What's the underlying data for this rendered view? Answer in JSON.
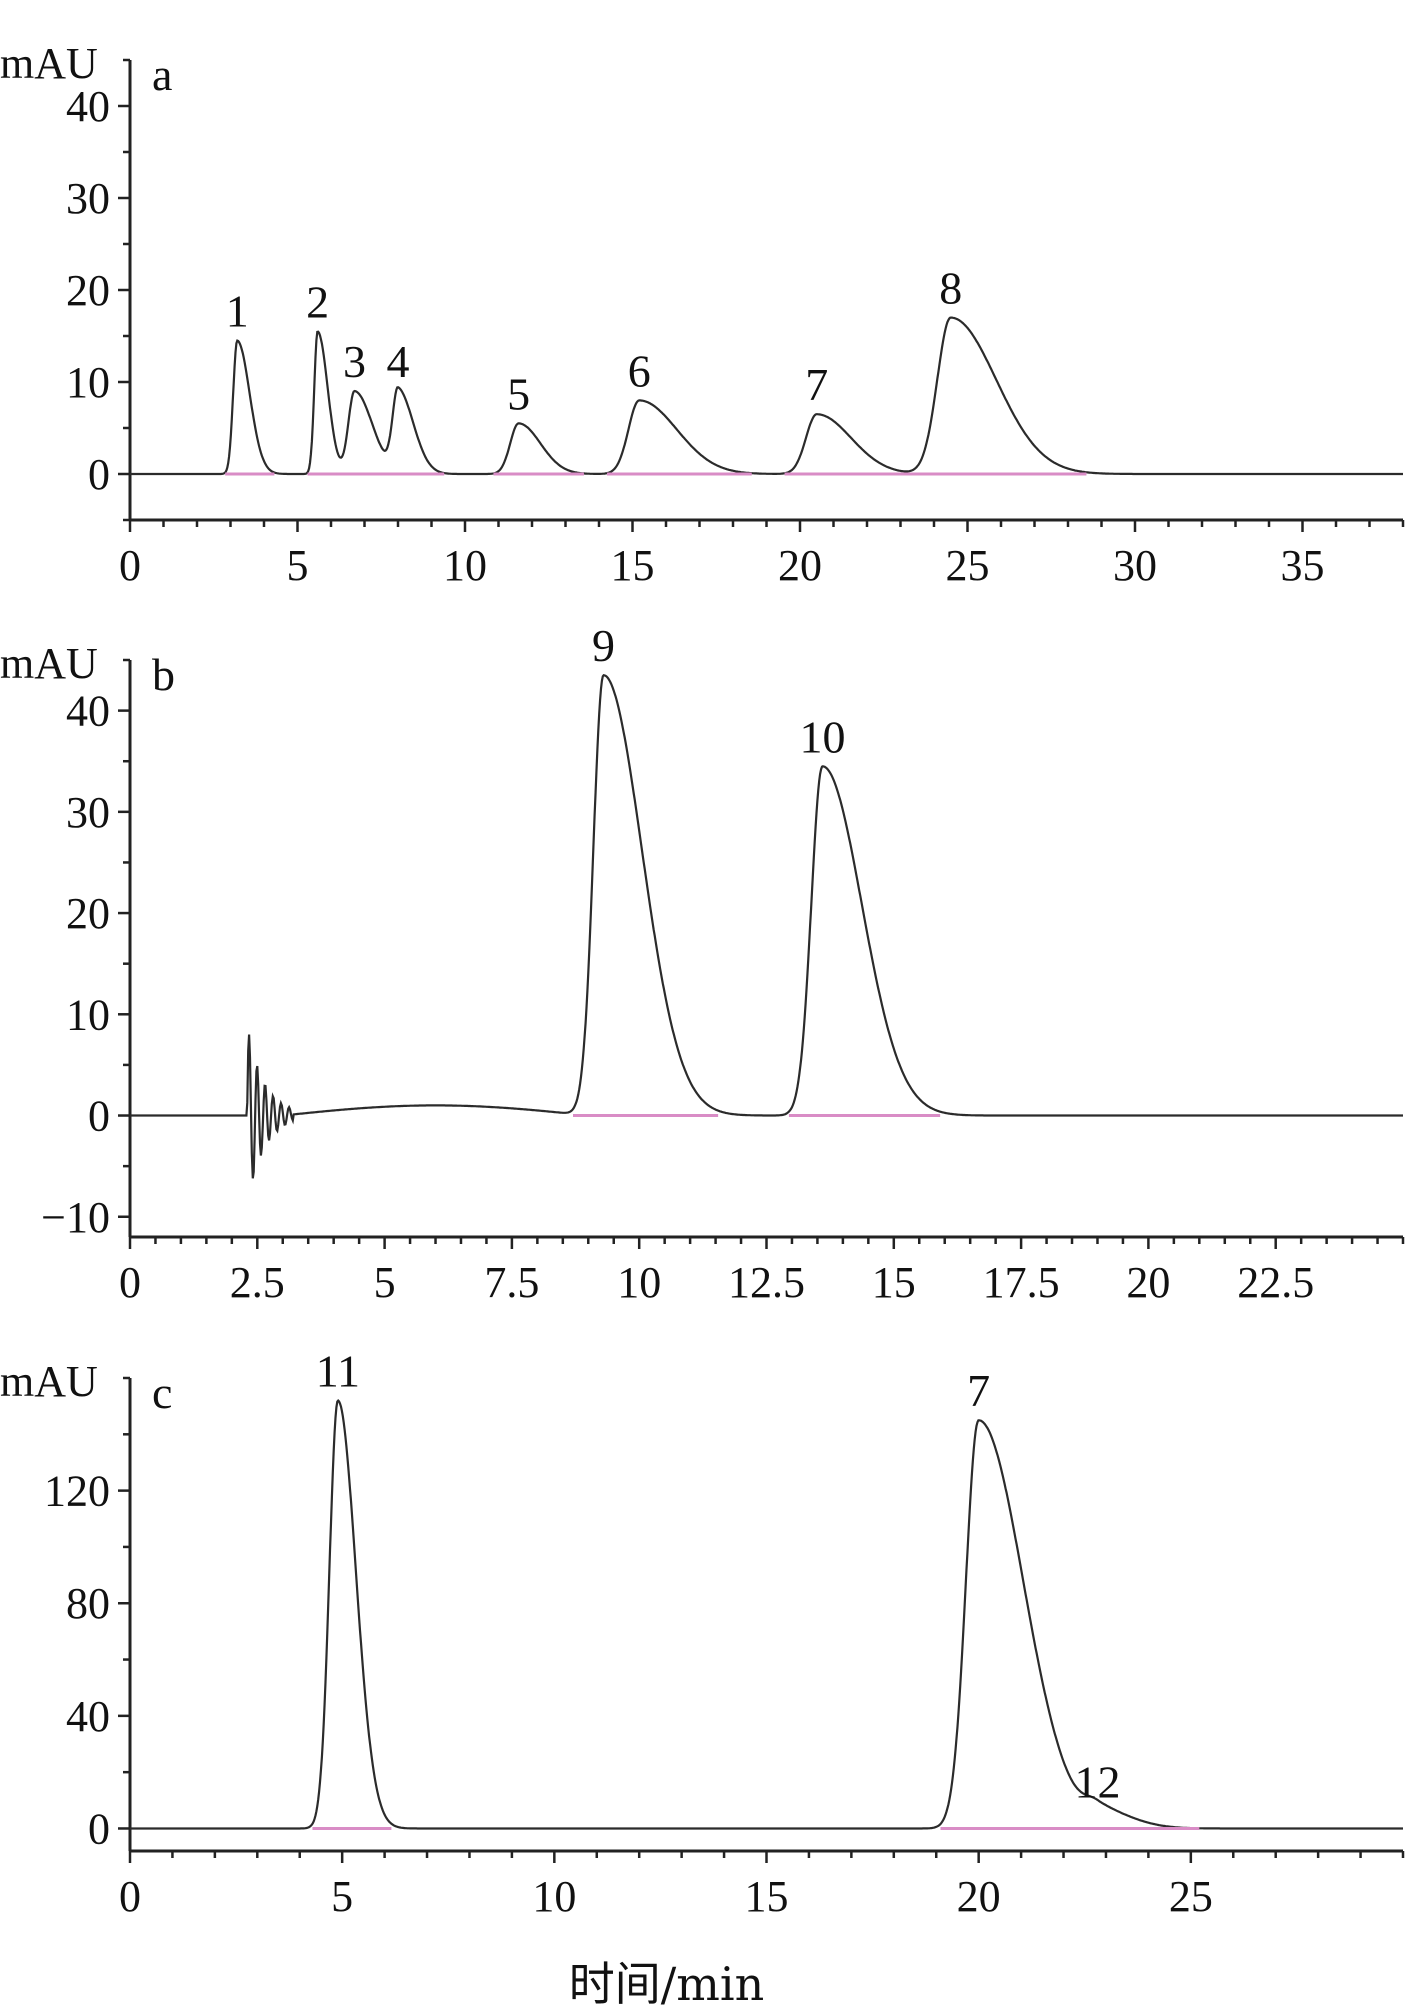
{
  "chart_data": [
    {
      "type": "line",
      "panel_label": "a",
      "ylabel": "mAU",
      "xlim": [
        0,
        38
      ],
      "ylim": [
        -5,
        45
      ],
      "xticks": [
        0,
        5,
        10,
        15,
        20,
        25,
        30,
        35
      ],
      "yticks": [
        0,
        10,
        20,
        30,
        40
      ],
      "xtick_labels": [
        "0",
        "5",
        "10",
        "15",
        "20",
        "25",
        "30",
        "35"
      ],
      "ytick_labels": [
        "0",
        "10",
        "20",
        "30",
        "40"
      ],
      "peaks": [
        {
          "label": "1",
          "x": 3.2,
          "y": 14.5
        },
        {
          "label": "2",
          "x": 5.6,
          "y": 15.5
        },
        {
          "label": "3",
          "x": 6.7,
          "y": 9.0
        },
        {
          "label": "4",
          "x": 8.0,
          "y": 9.0
        },
        {
          "label": "5",
          "x": 11.6,
          "y": 5.5
        },
        {
          "label": "6",
          "x": 15.2,
          "y": 8.0
        },
        {
          "label": "7",
          "x": 20.5,
          "y": 6.5
        },
        {
          "label": "8",
          "x": 24.5,
          "y": 17.0
        }
      ]
    },
    {
      "type": "line",
      "panel_label": "b",
      "ylabel": "mAU",
      "xlim": [
        0,
        25
      ],
      "ylim": [
        -12,
        45
      ],
      "xticks": [
        0,
        2.5,
        5,
        7.5,
        10,
        12.5,
        15,
        17.5,
        20,
        22.5
      ],
      "yticks": [
        -10,
        0,
        10,
        20,
        30,
        40
      ],
      "xtick_labels": [
        "0",
        "2.5",
        "5",
        "7.5",
        "10",
        "12.5",
        "15",
        "17.5",
        "20",
        "22.5"
      ],
      "ytick_labels": [
        "−10",
        "0",
        "10",
        "20",
        "30",
        "40"
      ],
      "peaks": [
        {
          "label": "9",
          "x": 9.3,
          "y": 43.5
        },
        {
          "label": "10",
          "x": 13.6,
          "y": 34.5
        }
      ]
    },
    {
      "type": "line",
      "panel_label": "c",
      "ylabel": "mAU",
      "xlim": [
        0,
        30
      ],
      "ylim": [
        -8,
        160
      ],
      "xticks": [
        0,
        5,
        10,
        15,
        20,
        25
      ],
      "yticks": [
        0,
        40,
        80,
        120
      ],
      "xtick_labels": [
        "0",
        "5",
        "10",
        "15",
        "20",
        "25"
      ],
      "ytick_labels": [
        "0",
        "40",
        "80",
        "120"
      ],
      "xlabel": "时间/min",
      "peaks": [
        {
          "label": "11",
          "x": 4.9,
          "y": 152
        },
        {
          "label": "7",
          "x": 20.0,
          "y": 145
        },
        {
          "label": "12",
          "x": 22.8,
          "y": 6
        }
      ]
    }
  ]
}
